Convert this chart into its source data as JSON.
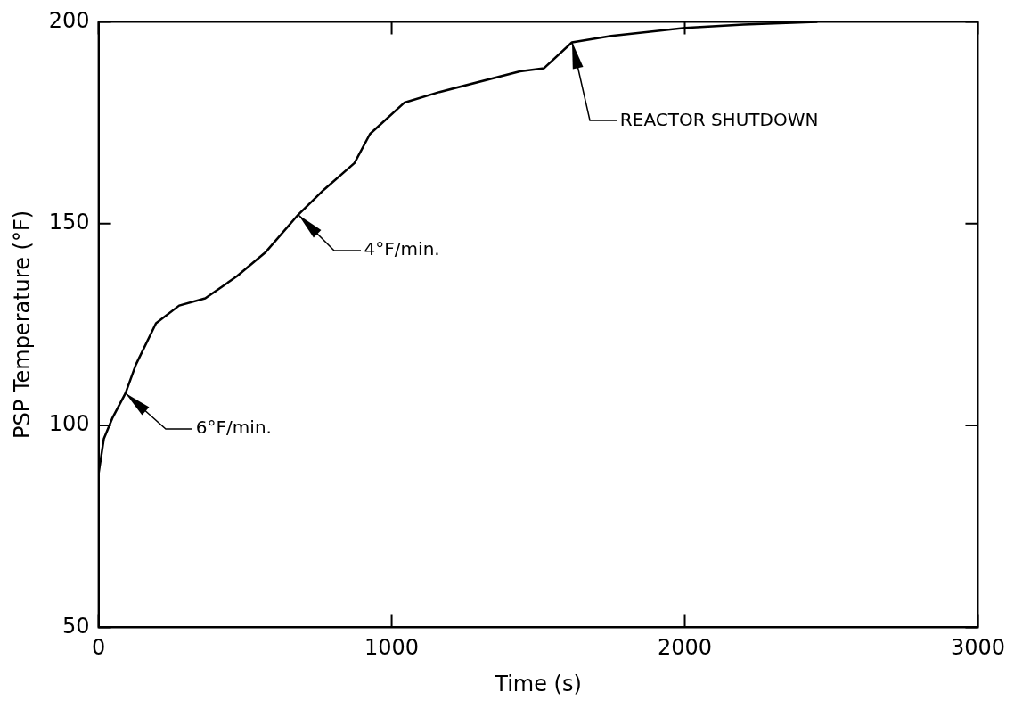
{
  "chart_data": {
    "type": "line",
    "xlabel": "Time (s)",
    "ylabel": "PSP Temperature (°F)",
    "series": [
      {
        "color": "#000000",
        "x": [
          0,
          18,
          47,
          92,
          127,
          196,
          275,
          364,
          473,
          571,
          681,
          769,
          873,
          926,
          1044,
          1163,
          1438,
          1520,
          1615,
          1749,
          2000,
          2200,
          2450
        ],
        "values": [
          88,
          96.7,
          101.8,
          108,
          115,
          125.3,
          129.7,
          131.5,
          137,
          143,
          152.2,
          158.4,
          165,
          172.2,
          180,
          182.6,
          187.7,
          188.5,
          194.9,
          196.5,
          198.5,
          199.3,
          200
        ]
      }
    ],
    "xlim": [
      0,
      3000
    ],
    "xticks": [
      0,
      1000,
      2000,
      3000
    ],
    "ylim": [
      50,
      200
    ],
    "yticks": [
      50,
      100,
      150,
      200
    ],
    "grid": false,
    "legend": false,
    "marker": "none",
    "line_style": "solid",
    "annotations": [
      {
        "text": "6°F/min.",
        "x": 92,
        "y": 108
      },
      {
        "text": "4°F/min.",
        "x": 681,
        "y": 152.2
      },
      {
        "text": "REACTOR SHUTDOWN",
        "x": 1615,
        "y": 194.9
      }
    ]
  }
}
